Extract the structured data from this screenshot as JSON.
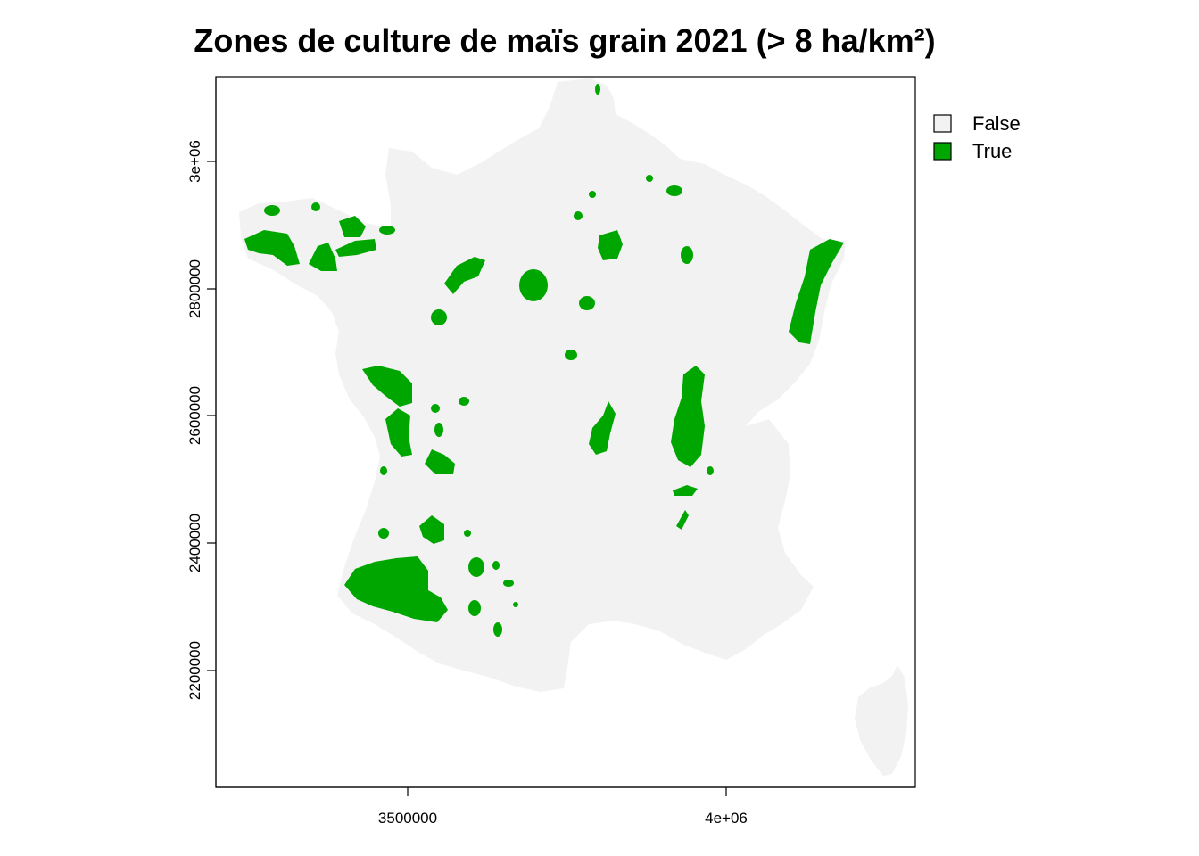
{
  "title": "Zones de culture de maïs grain 2021 (> 8 ha/km²)",
  "axes": {
    "x_ticks": [
      "3500000",
      "4e+06"
    ],
    "y_ticks": [
      "3e+06",
      "2800000",
      "2600000",
      "2400000",
      "2200000"
    ]
  },
  "legend": {
    "placement": "right",
    "items": [
      {
        "label": "False",
        "color": "#f2f2f2"
      },
      {
        "label": "True",
        "color": "#00a600"
      }
    ]
  },
  "colors": {
    "land": "#f2f2f2",
    "crop": "#00a600",
    "frame": "#000000"
  },
  "chart_data": {
    "type": "heatmap",
    "title": "Zones de culture de maïs grain 2021 (> 8 ha/km²)",
    "xlim": [
      3200000,
      4300000
    ],
    "ylim": [
      2020000,
      3130000
    ],
    "x_ticks": [
      3500000,
      4000000
    ],
    "y_ticks": [
      3000000,
      2800000,
      2600000,
      2400000,
      2200000
    ],
    "categories": [
      "False",
      "True"
    ],
    "legend_placement": "right",
    "grid": false
  }
}
